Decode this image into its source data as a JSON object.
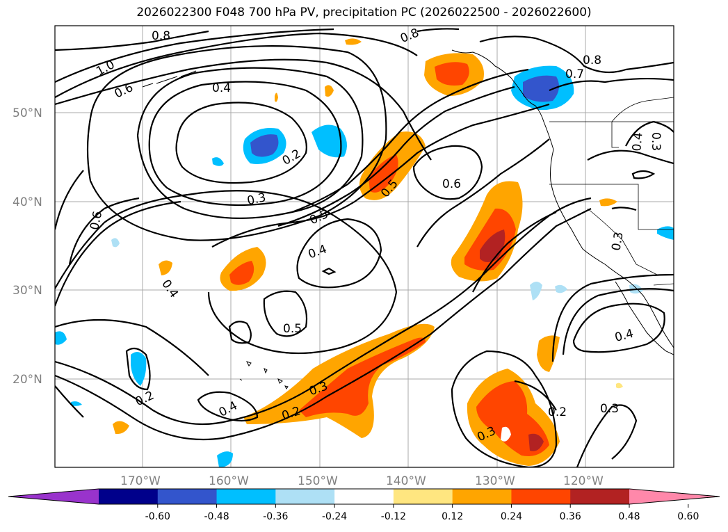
{
  "title": "2026022300 F048 700 hPa PV, precipitation PC (2026022500 - 2026022600)",
  "map": {
    "lat_labels": [
      "50°N",
      "40°N",
      "30°N",
      "20°N"
    ],
    "lon_labels": [
      "170°W",
      "160°W",
      "150°W",
      "140°W",
      "130°W",
      "120°W"
    ],
    "contour_labels": [
      "0.8",
      "1.0",
      "0.6",
      "0.4",
      "0.2",
      "0.3",
      "0.6",
      "0.4",
      "0.5",
      "0.4",
      "0.6",
      "0.2",
      "0.4",
      "0.3",
      "0.2",
      "0.5",
      "0.8",
      "0.7",
      "0.4",
      "0.3",
      "0.3",
      "0.4",
      "0.3",
      "0.3",
      "0.2",
      "0.3",
      "0.8",
      "0.4"
    ]
  },
  "colorbar": {
    "ticks": [
      "-0.60",
      "-0.48",
      "-0.36",
      "-0.24",
      "-0.12",
      "0.12",
      "0.24",
      "0.36",
      "0.48",
      "0.60"
    ],
    "colors": [
      "#9933cc",
      "#00008b",
      "#3355cc",
      "#00bfff",
      "#aee0f5",
      "#ffffff",
      "#ffe680",
      "#ffa500",
      "#ff4500",
      "#b22222",
      "#ff88aa"
    ]
  },
  "colors": {
    "neg_strong": "#3355cc",
    "neg_mid": "#00bfff",
    "neg_light": "#aee0f5",
    "pos_light": "#ffe680",
    "pos_mid": "#ffa500",
    "pos_strong": "#ff4500",
    "pos_max": "#b22222"
  }
}
